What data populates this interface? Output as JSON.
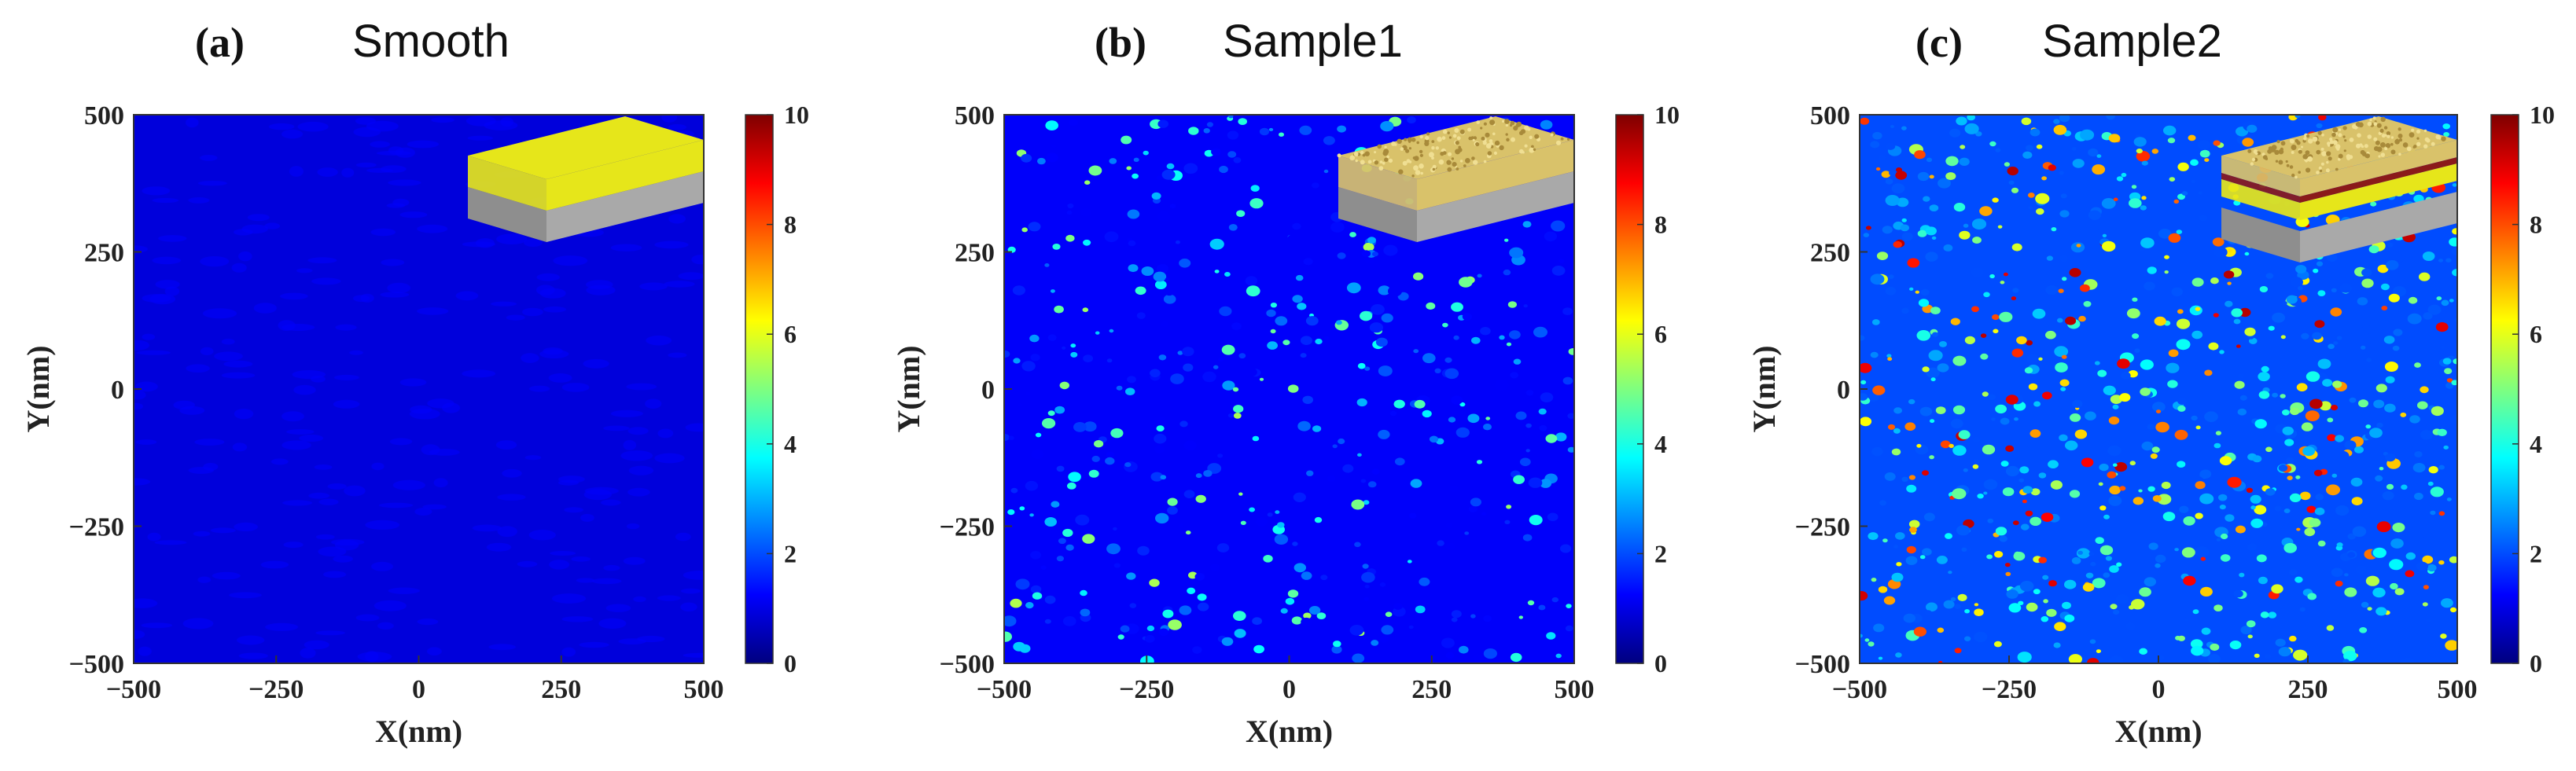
{
  "figure": {
    "colorbar_colors": [
      "#00007f",
      "#0000ff",
      "#007fff",
      "#00ffff",
      "#7fff7f",
      "#ffff00",
      "#ff7f00",
      "#ff0000",
      "#7f0000"
    ]
  },
  "chart_data": [
    {
      "type": "heatmap",
      "letter": "(a)",
      "title": "Smooth",
      "xlabel": "X(nm)",
      "ylabel": "Y(nm)",
      "xlim": [
        -500,
        500
      ],
      "ylim": [
        -500,
        500
      ],
      "xticks": [
        -500,
        -250,
        0,
        250,
        500
      ],
      "yticks": [
        -500,
        -250,
        0,
        250,
        500
      ],
      "x_tick_labels": [
        "−500",
        "−250",
        "0",
        "250",
        "500"
      ],
      "y_tick_labels": [
        "−500",
        "−250",
        "0",
        "250",
        "500"
      ],
      "colorbar": {
        "min": 0,
        "max": 10,
        "ticks": [
          "0",
          "2",
          "4",
          "6",
          "8",
          "10"
        ]
      },
      "field": {
        "base": 0.9,
        "hotspot_fraction": 0.0,
        "hotspot_max": 1.2
      },
      "inset": {
        "layers": [
          "gold",
          "substrate"
        ],
        "textured_top": false,
        "colors": {
          "top": "#e6e61a",
          "mid": "#c9c900",
          "substrate": "#9a9a9a"
        }
      }
    },
    {
      "type": "heatmap",
      "letter": "(b)",
      "title": "Sample1",
      "xlabel": "X(nm)",
      "ylabel": "Y(nm)",
      "xlim": [
        -500,
        500
      ],
      "ylim": [
        -500,
        500
      ],
      "xticks": [
        -500,
        -250,
        0,
        250,
        500
      ],
      "yticks": [
        -500,
        -250,
        0,
        250,
        500
      ],
      "x_tick_labels": [
        "−500",
        "−250",
        "0",
        "250",
        "500"
      ],
      "y_tick_labels": [
        "−500",
        "−250",
        "0",
        "250",
        "500"
      ],
      "colorbar": {
        "min": 0,
        "max": 10,
        "ticks": [
          "0",
          "2",
          "4",
          "6",
          "8",
          "10"
        ]
      },
      "field": {
        "base": 1.2,
        "hotspot_fraction": 0.16,
        "hotspot_max": 5.5
      },
      "inset": {
        "layers": [
          "rough gold",
          "substrate"
        ],
        "textured_top": true,
        "colors": {
          "top": "#d9c26a",
          "mid": "#b8a04a",
          "substrate": "#9a9a9a"
        }
      }
    },
    {
      "type": "heatmap",
      "letter": "(c)",
      "title": "Sample2",
      "xlabel": "X(nm)",
      "ylabel": "Y(nm)",
      "xlim": [
        -500,
        500
      ],
      "ylim": [
        -500,
        500
      ],
      "xticks": [
        -500,
        -250,
        0,
        250,
        500
      ],
      "yticks": [
        -500,
        -250,
        0,
        250,
        500
      ],
      "x_tick_labels": [
        "−500",
        "−250",
        "0",
        "250",
        "500"
      ],
      "y_tick_labels": [
        "−500",
        "−250",
        "0",
        "250",
        "500"
      ],
      "colorbar": {
        "min": 0,
        "max": 10,
        "ticks": [
          "0",
          "2",
          "4",
          "6",
          "8",
          "10"
        ]
      },
      "field": {
        "base": 2.0,
        "hotspot_fraction": 0.3,
        "hotspot_max": 9.5
      },
      "inset": {
        "layers": [
          "rough gold",
          "dielectric",
          "gold",
          "substrate"
        ],
        "textured_top": true,
        "colors": {
          "top": "#d9c26a",
          "mid": "#e6e61a",
          "spacer": "#8b1a1a",
          "substrate": "#9a9a9a"
        }
      }
    }
  ]
}
